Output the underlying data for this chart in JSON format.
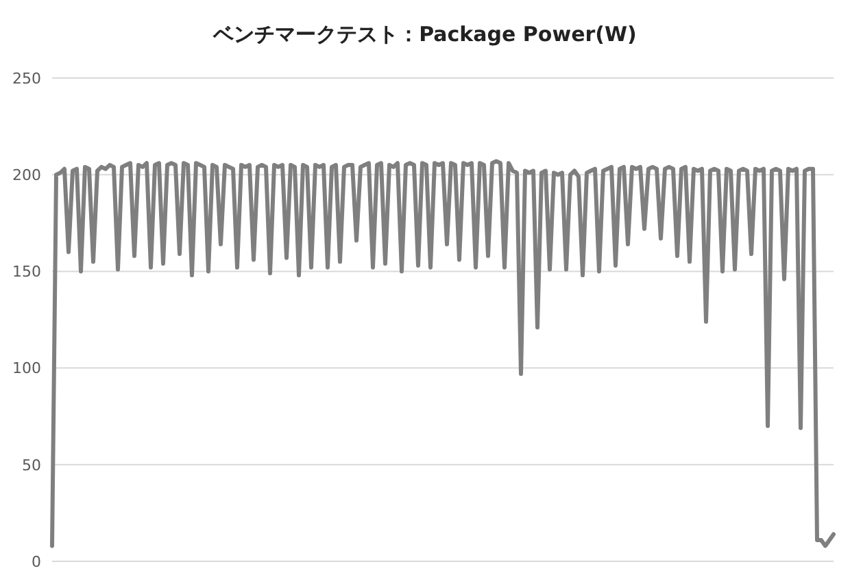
{
  "chart_data": {
    "type": "line",
    "title": "ベンチマークテスト：Package Power(W)",
    "categories": [
      null,
      null,
      null,
      null,
      null,
      null,
      null,
      null,
      null,
      null,
      null,
      null,
      null,
      null,
      null,
      null,
      null,
      null,
      null,
      null,
      null,
      null,
      null,
      null,
      null,
      null,
      null,
      null,
      null,
      null,
      null,
      null,
      null,
      null,
      null,
      null,
      null,
      null,
      null,
      null,
      null,
      null,
      null,
      null,
      null,
      null,
      null,
      null,
      null,
      null,
      null,
      null,
      null,
      null,
      null,
      null,
      null,
      null,
      null,
      null,
      null,
      null,
      null,
      null,
      null,
      null,
      null,
      null,
      null,
      null,
      null,
      null,
      null,
      null,
      null,
      null,
      null,
      null,
      null,
      null,
      null,
      null,
      null,
      null,
      null,
      null,
      null,
      null,
      null,
      null,
      null,
      null,
      null,
      null,
      null,
      null,
      null,
      null,
      null,
      null,
      null,
      null,
      null,
      null,
      null,
      null,
      null,
      null,
      null,
      null,
      null,
      null,
      null,
      null,
      null,
      null,
      null,
      null,
      null,
      null,
      null,
      null,
      null,
      null,
      null,
      null,
      null,
      null,
      null,
      null,
      null,
      null,
      null,
      null,
      null,
      null,
      null,
      null,
      null,
      null,
      null,
      null,
      null,
      null,
      null,
      null,
      null,
      null,
      null,
      null,
      null,
      null,
      null,
      null,
      null,
      null,
      null,
      null,
      null,
      null,
      null,
      null,
      null,
      null,
      null,
      null,
      null,
      null,
      null,
      null,
      null,
      null,
      null,
      null,
      null,
      null,
      null,
      null,
      null,
      null,
      null,
      null,
      null,
      null,
      null,
      null,
      null,
      null,
      null,
      null,
      null
    ],
    "series": [
      {
        "color": "#7f7f7f",
        "values": [
          8,
          200,
          201,
          203,
          160,
          202,
          203,
          150,
          204,
          203,
          155,
          202,
          204,
          203,
          205,
          204,
          151,
          204,
          205,
          206,
          158,
          205,
          204,
          206,
          152,
          205,
          206,
          154,
          205,
          206,
          205,
          159,
          206,
          205,
          148,
          206,
          205,
          204,
          150,
          205,
          204,
          164,
          205,
          204,
          203,
          152,
          205,
          204,
          205,
          156,
          204,
          205,
          204,
          149,
          205,
          204,
          205,
          157,
          205,
          204,
          148,
          205,
          204,
          152,
          205,
          204,
          205,
          152,
          204,
          205,
          155,
          204,
          205,
          205,
          166,
          204,
          205,
          206,
          152,
          205,
          206,
          154,
          205,
          204,
          206,
          150,
          205,
          206,
          205,
          153,
          206,
          205,
          152,
          206,
          205,
          206,
          164,
          206,
          205,
          156,
          206,
          205,
          206,
          152,
          206,
          205,
          158,
          206,
          207,
          206,
          152,
          206,
          202,
          201,
          97,
          202,
          201,
          202,
          121,
          201,
          202,
          151,
          201,
          200,
          201,
          151,
          200,
          202,
          199,
          148,
          201,
          202,
          203,
          150,
          202,
          203,
          204,
          153,
          203,
          204,
          164,
          204,
          203,
          204,
          172,
          203,
          204,
          203,
          167,
          203,
          204,
          203,
          158,
          203,
          204,
          155,
          203,
          202,
          203,
          124,
          202,
          203,
          202,
          150,
          203,
          202,
          151,
          202,
          203,
          202,
          159,
          203,
          202,
          203,
          70,
          202,
          203,
          202,
          146,
          203,
          202,
          203,
          69,
          202,
          203,
          203,
          11,
          11,
          8,
          11,
          14
        ]
      }
    ],
    "ylim": [
      0,
      250
    ],
    "yticks": [
      0,
      50,
      100,
      150,
      200,
      250
    ],
    "grid": "y",
    "tick_labels": "y",
    "line_style": "solid",
    "marker": "none"
  }
}
